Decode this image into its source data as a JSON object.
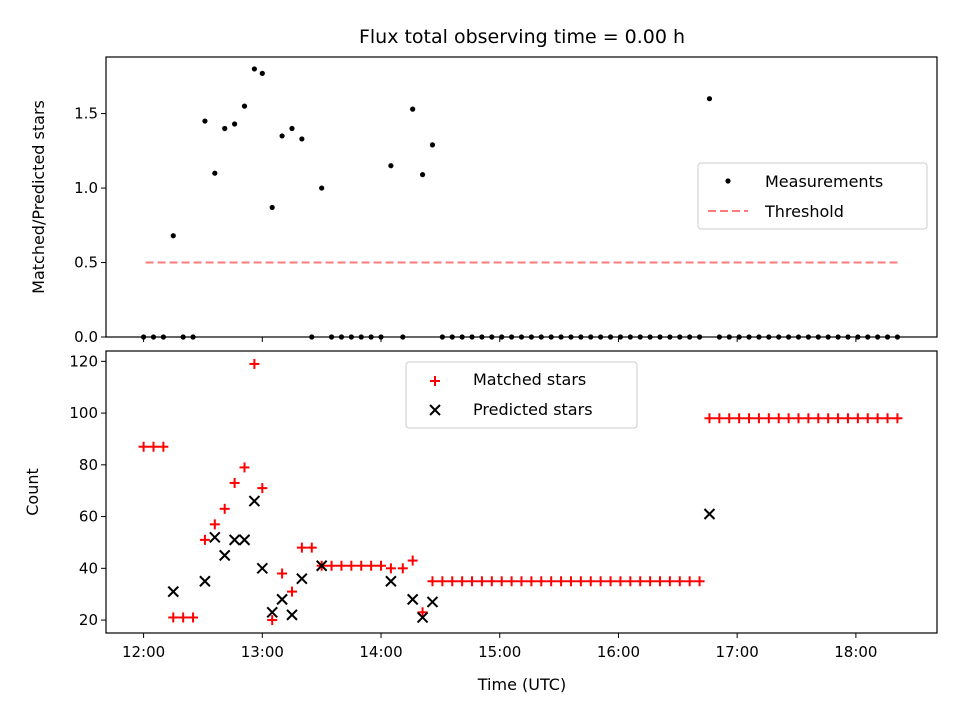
{
  "chart_data": {
    "title": "Flux total observing time = 0.00 h",
    "xlabel": "Time (UTC)",
    "xlim": [
      "11:41",
      "18:41"
    ],
    "xticks": [
      "12:00",
      "13:00",
      "14:00",
      "15:00",
      "16:00",
      "17:00",
      "18:00"
    ],
    "panels": [
      {
        "type": "scatter",
        "ylabel": "Matched/Predicted stars",
        "ylim": [
          0,
          1.88
        ],
        "yticks": [
          "0.0",
          "0.5",
          "1.0",
          "1.5"
        ],
        "legend_position": "center-right",
        "colors": {
          "measurements": "#000000",
          "threshold": "#ff7b7b"
        },
        "threshold": {
          "name": "Threshold",
          "value": 0.5,
          "x_start": "12:01",
          "x_end": "18:21"
        },
        "series": [
          {
            "name": "Measurements",
            "points": [
              [
                "12:00",
                0
              ],
              [
                "12:05",
                0
              ],
              [
                "12:10",
                0
              ],
              [
                "12:15",
                0.68
              ],
              [
                "12:20",
                0
              ],
              [
                "12:25",
                0
              ],
              [
                "12:31",
                1.45
              ],
              [
                "12:36",
                1.1
              ],
              [
                "12:41",
                1.4
              ],
              [
                "12:46",
                1.43
              ],
              [
                "12:51",
                1.55
              ],
              [
                "12:56",
                1.8
              ],
              [
                "13:00",
                1.77
              ],
              [
                "13:05",
                0.87
              ],
              [
                "13:10",
                1.35
              ],
              [
                "13:15",
                1.4
              ],
              [
                "13:20",
                1.33
              ],
              [
                "13:25",
                0
              ],
              [
                "13:30",
                1.0
              ],
              [
                "13:35",
                0
              ],
              [
                "13:40",
                0
              ],
              [
                "13:45",
                0
              ],
              [
                "13:50",
                0
              ],
              [
                "13:55",
                0
              ],
              [
                "14:00",
                0
              ],
              [
                "14:05",
                1.15
              ],
              [
                "14:11",
                0
              ],
              [
                "14:16",
                1.53
              ],
              [
                "14:21",
                1.09
              ],
              [
                "14:26",
                1.29
              ],
              [
                "14:31",
                0
              ],
              [
                "14:36",
                0
              ],
              [
                "14:41",
                0
              ],
              [
                "14:46",
                0
              ],
              [
                "14:51",
                0
              ],
              [
                "14:56",
                0
              ],
              [
                "15:01",
                0
              ],
              [
                "15:06",
                0
              ],
              [
                "15:11",
                0
              ],
              [
                "15:16",
                0
              ],
              [
                "15:21",
                0
              ],
              [
                "15:26",
                0
              ],
              [
                "15:31",
                0
              ],
              [
                "15:36",
                0
              ],
              [
                "15:41",
                0
              ],
              [
                "15:46",
                0
              ],
              [
                "15:51",
                0
              ],
              [
                "15:56",
                0
              ],
              [
                "16:01",
                0
              ],
              [
                "16:06",
                0
              ],
              [
                "16:11",
                0
              ],
              [
                "16:16",
                0
              ],
              [
                "16:21",
                0
              ],
              [
                "16:26",
                0
              ],
              [
                "16:31",
                0
              ],
              [
                "16:36",
                0
              ],
              [
                "16:41",
                0
              ],
              [
                "16:46",
                1.6
              ],
              [
                "16:51",
                0
              ],
              [
                "16:56",
                0
              ],
              [
                "17:01",
                0
              ],
              [
                "17:06",
                0
              ],
              [
                "17:11",
                0
              ],
              [
                "17:16",
                0
              ],
              [
                "17:21",
                0
              ],
              [
                "17:26",
                0
              ],
              [
                "17:31",
                0
              ],
              [
                "17:36",
                0
              ],
              [
                "17:41",
                0
              ],
              [
                "17:46",
                0
              ],
              [
                "17:51",
                0
              ],
              [
                "17:56",
                0
              ],
              [
                "18:01",
                0
              ],
              [
                "18:06",
                0
              ],
              [
                "18:11",
                0
              ],
              [
                "18:16",
                0
              ],
              [
                "18:21",
                0
              ]
            ]
          }
        ]
      },
      {
        "type": "scatter",
        "ylabel": "Count",
        "ylim": [
          15,
          124
        ],
        "yticks": [
          "20",
          "40",
          "60",
          "80",
          "100",
          "120"
        ],
        "legend_position": "top-center",
        "colors": {
          "matched": "#ff0000",
          "predicted": "#000000"
        },
        "series": [
          {
            "name": "Matched stars",
            "marker": "+",
            "points": [
              [
                "12:00",
                87
              ],
              [
                "12:05",
                87
              ],
              [
                "12:10",
                87
              ],
              [
                "12:15",
                21
              ],
              [
                "12:20",
                21
              ],
              [
                "12:25",
                21
              ],
              [
                "12:31",
                51
              ],
              [
                "12:36",
                57
              ],
              [
                "12:41",
                63
              ],
              [
                "12:46",
                73
              ],
              [
                "12:51",
                79
              ],
              [
                "12:56",
                119
              ],
              [
                "13:00",
                71
              ],
              [
                "13:05",
                20
              ],
              [
                "13:10",
                38
              ],
              [
                "13:15",
                31
              ],
              [
                "13:20",
                48
              ],
              [
                "13:25",
                48
              ],
              [
                "13:30",
                41
              ],
              [
                "13:35",
                41
              ],
              [
                "13:40",
                41
              ],
              [
                "13:45",
                41
              ],
              [
                "13:50",
                41
              ],
              [
                "13:55",
                41
              ],
              [
                "14:00",
                41
              ],
              [
                "14:05",
                40
              ],
              [
                "14:11",
                40
              ],
              [
                "14:16",
                43
              ],
              [
                "14:21",
                23
              ],
              [
                "14:26",
                35
              ],
              [
                "14:31",
                35
              ],
              [
                "14:36",
                35
              ],
              [
                "14:41",
                35
              ],
              [
                "14:46",
                35
              ],
              [
                "14:51",
                35
              ],
              [
                "14:56",
                35
              ],
              [
                "15:01",
                35
              ],
              [
                "15:06",
                35
              ],
              [
                "15:11",
                35
              ],
              [
                "15:16",
                35
              ],
              [
                "15:21",
                35
              ],
              [
                "15:26",
                35
              ],
              [
                "15:31",
                35
              ],
              [
                "15:36",
                35
              ],
              [
                "15:41",
                35
              ],
              [
                "15:46",
                35
              ],
              [
                "15:51",
                35
              ],
              [
                "15:56",
                35
              ],
              [
                "16:01",
                35
              ],
              [
                "16:06",
                35
              ],
              [
                "16:11",
                35
              ],
              [
                "16:16",
                35
              ],
              [
                "16:21",
                35
              ],
              [
                "16:26",
                35
              ],
              [
                "16:31",
                35
              ],
              [
                "16:36",
                35
              ],
              [
                "16:41",
                35
              ],
              [
                "16:46",
                98
              ],
              [
                "16:51",
                98
              ],
              [
                "16:56",
                98
              ],
              [
                "17:01",
                98
              ],
              [
                "17:06",
                98
              ],
              [
                "17:11",
                98
              ],
              [
                "17:16",
                98
              ],
              [
                "17:21",
                98
              ],
              [
                "17:26",
                98
              ],
              [
                "17:31",
                98
              ],
              [
                "17:36",
                98
              ],
              [
                "17:41",
                98
              ],
              [
                "17:46",
                98
              ],
              [
                "17:51",
                98
              ],
              [
                "17:56",
                98
              ],
              [
                "18:01",
                98
              ],
              [
                "18:06",
                98
              ],
              [
                "18:11",
                98
              ],
              [
                "18:16",
                98
              ],
              [
                "18:21",
                98
              ]
            ]
          },
          {
            "name": "Predicted stars",
            "marker": "x",
            "points": [
              [
                "12:15",
                31
              ],
              [
                "12:31",
                35
              ],
              [
                "12:36",
                52
              ],
              [
                "12:41",
                45
              ],
              [
                "12:46",
                51
              ],
              [
                "12:51",
                51
              ],
              [
                "12:56",
                66
              ],
              [
                "13:00",
                40
              ],
              [
                "13:05",
                23
              ],
              [
                "13:10",
                28
              ],
              [
                "13:15",
                22
              ],
              [
                "13:20",
                36
              ],
              [
                "13:30",
                41
              ],
              [
                "14:05",
                35
              ],
              [
                "14:16",
                28
              ],
              [
                "14:21",
                21
              ],
              [
                "14:26",
                27
              ],
              [
                "16:46",
                61
              ]
            ]
          }
        ]
      }
    ]
  }
}
